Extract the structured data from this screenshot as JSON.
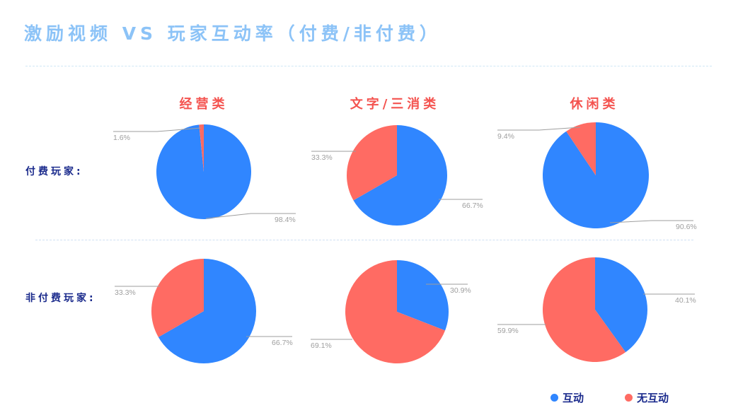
{
  "title": "激励视频 VS 玩家互动率（付费/非付费）",
  "columns": [
    "经营类",
    "文字/三消类",
    "休闲类"
  ],
  "rows": [
    "付费玩家:",
    "非付费玩家:"
  ],
  "legend": [
    {
      "label": "互动",
      "color": "#3086ff"
    },
    {
      "label": "无互动",
      "color": "#ff6b63"
    }
  ],
  "colors": {
    "interact": "#3086ff",
    "no_interact": "#ff6b63",
    "title": "#8cc3f7",
    "col_title": "#f4534f",
    "row_label": "#1a2a8c"
  },
  "chart_data": [
    {
      "type": "pie",
      "title": "经营类 - 付费玩家",
      "categories": [
        "互动",
        "无互动"
      ],
      "values": [
        98.4,
        1.6
      ],
      "labels": [
        "98.4%",
        "1.6%"
      ]
    },
    {
      "type": "pie",
      "title": "文字/三消类 - 付费玩家",
      "categories": [
        "互动",
        "无互动"
      ],
      "values": [
        66.7,
        33.3
      ],
      "labels": [
        "66.7%",
        "33.3%"
      ]
    },
    {
      "type": "pie",
      "title": "休闲类 - 付费玩家",
      "categories": [
        "互动",
        "无互动"
      ],
      "values": [
        90.6,
        9.4
      ],
      "labels": [
        "90.6%",
        "9.4%"
      ]
    },
    {
      "type": "pie",
      "title": "经营类 - 非付费玩家",
      "categories": [
        "互动",
        "无互动"
      ],
      "values": [
        66.7,
        33.3
      ],
      "labels": [
        "66.7%",
        "33.3%"
      ]
    },
    {
      "type": "pie",
      "title": "文字/三消类 - 非付费玩家",
      "categories": [
        "互动",
        "无互动"
      ],
      "values": [
        30.9,
        69.1
      ],
      "labels": [
        "30.9%",
        "69.1%"
      ]
    },
    {
      "type": "pie",
      "title": "休闲类 - 非付费玩家",
      "categories": [
        "互动",
        "无互动"
      ],
      "values": [
        40.1,
        59.9
      ],
      "labels": [
        "40.1%",
        "59.9%"
      ]
    }
  ]
}
